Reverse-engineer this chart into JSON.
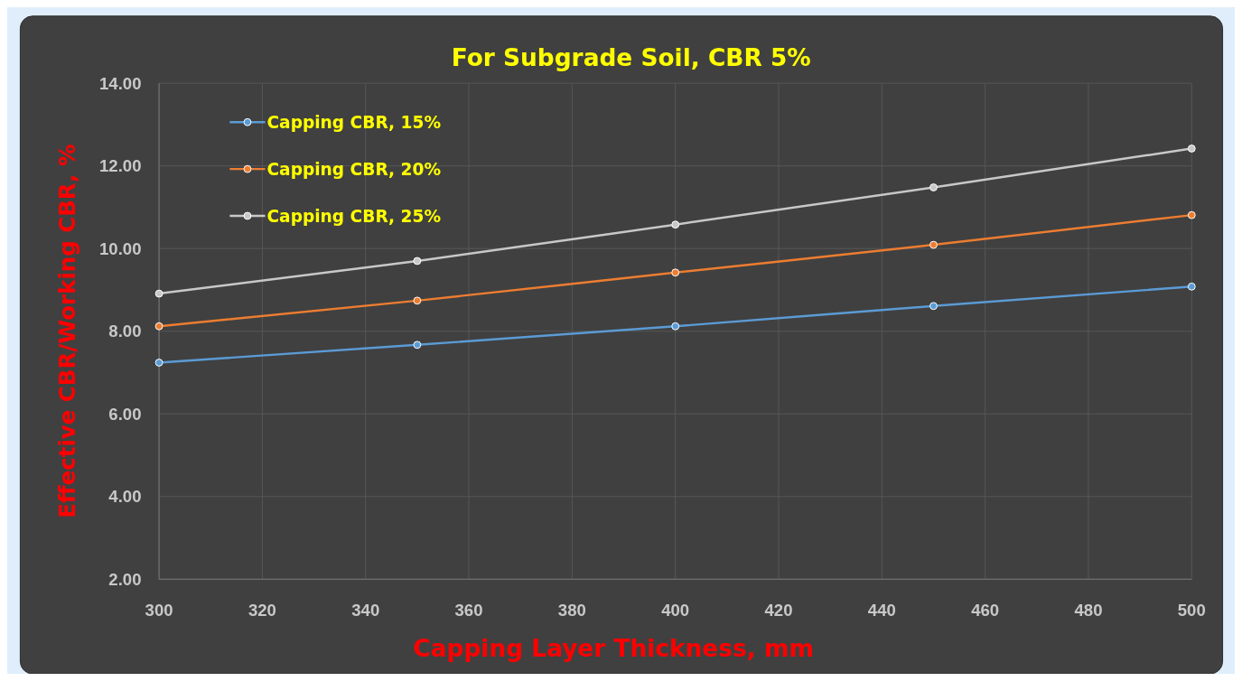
{
  "chart_data": {
    "type": "line",
    "title": "For Subgrade Soil, CBR 5%",
    "xlabel": "Capping Layer Thickness, mm",
    "ylabel": "Effective CBR/Working CBR, %",
    "x": [
      300,
      350,
      400,
      450,
      500
    ],
    "series": [
      {
        "name": "Capping CBR, 15%",
        "color": "#5b9bd5",
        "values": [
          7.24,
          7.67,
          8.12,
          8.61,
          9.08
        ]
      },
      {
        "name": "Capping CBR, 20%",
        "color": "#ed7d31",
        "values": [
          8.12,
          8.74,
          9.42,
          10.09,
          10.81
        ]
      },
      {
        "name": "Capping CBR, 25%",
        "color": "#c8c8c8",
        "values": [
          8.91,
          9.7,
          10.58,
          11.48,
          12.42
        ]
      }
    ],
    "xlim": [
      300,
      500
    ],
    "xticks": [
      300,
      320,
      340,
      360,
      380,
      400,
      420,
      440,
      460,
      480,
      500
    ],
    "ylim": [
      2,
      14
    ],
    "yticks": [
      {
        "value": 2,
        "label": "2.00"
      },
      {
        "value": 4,
        "label": "4.00"
      },
      {
        "value": 6,
        "label": "6.00"
      },
      {
        "value": 8,
        "label": "8.00"
      },
      {
        "value": 10,
        "label": "10.00"
      },
      {
        "value": 12,
        "label": "12.00"
      },
      {
        "value": 14,
        "label": "14.00"
      }
    ],
    "grid": true,
    "legend": "top left",
    "marker": "circle",
    "line_style": "solid"
  }
}
